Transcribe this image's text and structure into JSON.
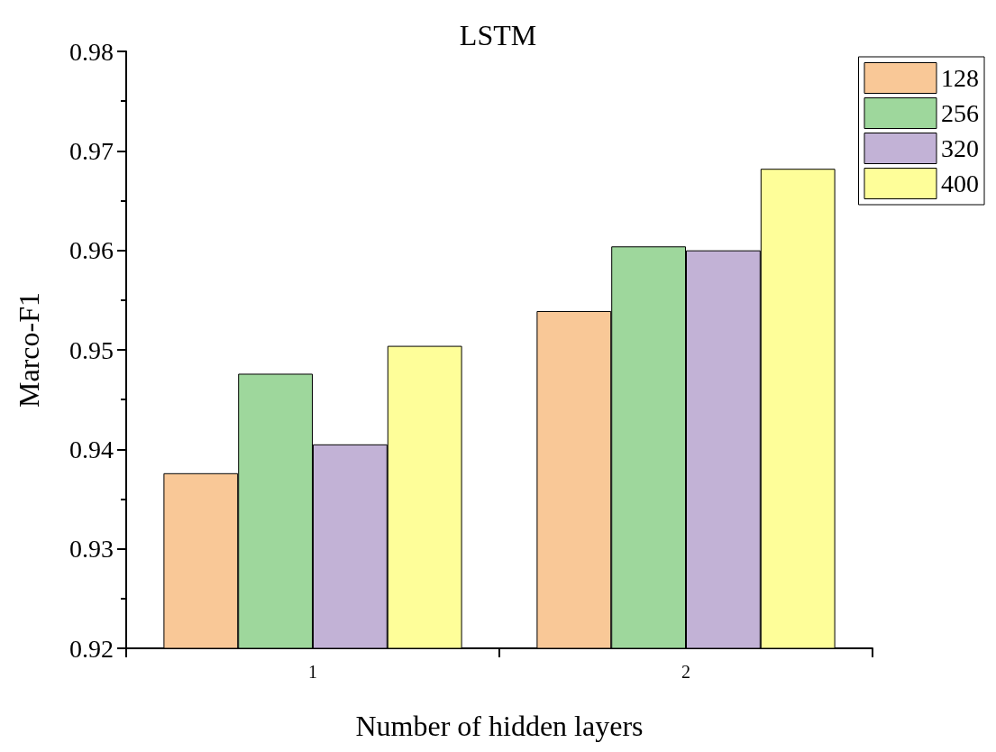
{
  "chart_data": {
    "type": "bar",
    "title": "LSTM",
    "xlabel": "Number of hidden layers",
    "ylabel": "Marco-F1",
    "categories": [
      "1",
      "2"
    ],
    "series": [
      {
        "name": "128",
        "color": "#f9c897",
        "values": [
          0.9376,
          0.9539
        ]
      },
      {
        "name": "256",
        "color": "#9ed79c",
        "values": [
          0.9476,
          0.9604
        ]
      },
      {
        "name": "320",
        "color": "#c2b2d6",
        "values": [
          0.9405,
          0.96
        ]
      },
      {
        "name": "400",
        "color": "#fefe99",
        "values": [
          0.9504,
          0.9682
        ]
      }
    ],
    "ylim": [
      0.92,
      0.98
    ],
    "yticks": [
      0.92,
      0.93,
      0.94,
      0.95,
      0.96,
      0.97,
      0.98
    ],
    "grid": false,
    "legend": "top right"
  }
}
